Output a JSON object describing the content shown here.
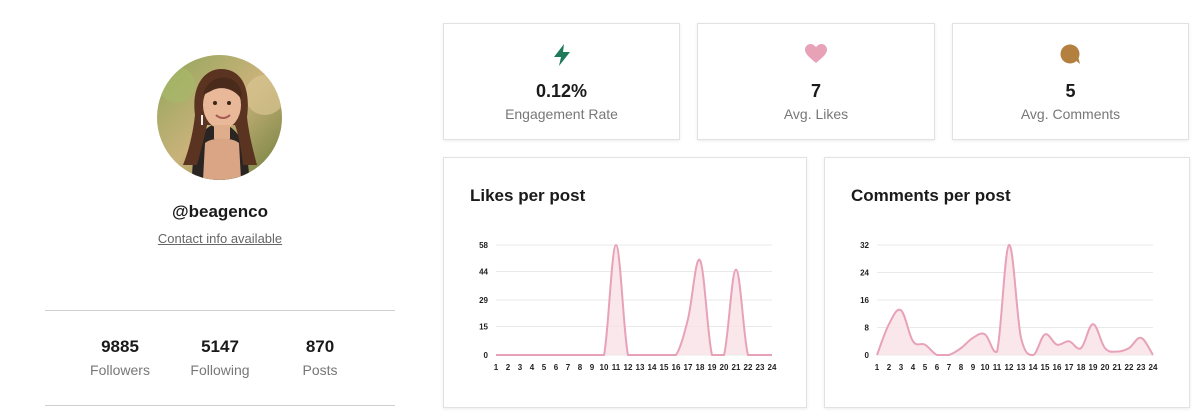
{
  "profile": {
    "handle": "@beagenco",
    "contact": "Contact info available",
    "stats": [
      {
        "value": "9885",
        "label": "Followers"
      },
      {
        "value": "5147",
        "label": "Following"
      },
      {
        "value": "870",
        "label": "Posts"
      }
    ]
  },
  "metrics": [
    {
      "icon": "lightning-icon",
      "color": "#1f7a5a",
      "value": "0.12%",
      "label": "Engagement Rate"
    },
    {
      "icon": "heart-icon",
      "color": "#e8a2b8",
      "value": "7",
      "label": "Avg. Likes"
    },
    {
      "icon": "comment-bubble-icon",
      "color": "#b3803f",
      "value": "5",
      "label": "Avg. Comments"
    }
  ],
  "colors": {
    "series_line": "#e8a2b8",
    "series_fill": "#f8e1e7",
    "grid": "#e9e9e9"
  },
  "chart_data": [
    {
      "type": "area",
      "title": "Likes per post",
      "x": [
        1,
        2,
        3,
        4,
        5,
        6,
        7,
        8,
        9,
        10,
        11,
        12,
        13,
        14,
        15,
        16,
        17,
        18,
        19,
        20,
        21,
        22,
        23,
        24
      ],
      "values": [
        0,
        0,
        0,
        0,
        0,
        0,
        0,
        0,
        0,
        0,
        58,
        0,
        0,
        0,
        0,
        0,
        19,
        50,
        0,
        0,
        45,
        0,
        0,
        0
      ],
      "yticks": [
        0,
        15,
        29,
        44,
        58
      ],
      "ylim": [
        0,
        58
      ],
      "grid": true
    },
    {
      "type": "area",
      "title": "Comments per post",
      "x": [
        1,
        2,
        3,
        4,
        5,
        6,
        7,
        8,
        9,
        10,
        11,
        12,
        13,
        14,
        15,
        16,
        17,
        18,
        19,
        20,
        21,
        22,
        23,
        24
      ],
      "values": [
        0,
        9,
        13,
        4,
        3,
        0,
        0,
        2,
        5,
        6,
        1,
        32,
        5,
        0,
        6,
        3,
        4,
        2,
        9,
        2,
        1,
        2,
        5,
        0
      ],
      "yticks": [
        0,
        8,
        16,
        24,
        32
      ],
      "ylim": [
        0,
        32
      ],
      "grid": true
    }
  ]
}
